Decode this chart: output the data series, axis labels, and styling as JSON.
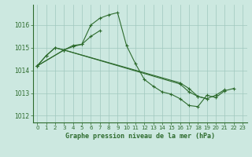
{
  "background_color": "#cce8e0",
  "grid_color": "#a0c8be",
  "line_color": "#2d6b2d",
  "title": "Graphe pression niveau de la mer (hPa)",
  "xlim": [
    -0.5,
    23.5
  ],
  "ylim": [
    1011.7,
    1016.9
  ],
  "yticks": [
    1012,
    1013,
    1014,
    1015,
    1016
  ],
  "xticks": [
    0,
    1,
    2,
    3,
    4,
    5,
    6,
    7,
    8,
    9,
    10,
    11,
    12,
    13,
    14,
    15,
    16,
    17,
    18,
    19,
    20,
    21,
    22,
    23
  ],
  "line1_x": [
    0,
    1,
    2,
    3,
    4,
    5,
    6,
    7,
    8,
    9,
    10,
    11,
    12,
    13,
    14,
    15,
    16,
    17,
    18,
    19,
    20,
    21,
    22
  ],
  "line1_y": [
    1014.2,
    1014.65,
    1015.0,
    1014.9,
    1015.1,
    1015.15,
    1016.0,
    1016.3,
    1016.45,
    1016.55,
    1015.1,
    1014.3,
    1013.6,
    1013.3,
    1013.05,
    1012.95,
    1012.75,
    1012.45,
    1012.4,
    1012.9,
    1012.8,
    1013.1,
    1013.2
  ],
  "line2_x": [
    0,
    1,
    2,
    3,
    4,
    5,
    6,
    7
  ],
  "line2_y": [
    1014.2,
    1014.65,
    1015.0,
    1014.9,
    1015.05,
    1015.15,
    1015.5,
    1015.75
  ],
  "line3_x": [
    0,
    3,
    16,
    17,
    18,
    19
  ],
  "line3_y": [
    1014.2,
    1014.9,
    1013.4,
    1013.05,
    1012.85,
    1012.75
  ],
  "line4_x": [
    0,
    3,
    16,
    17,
    18,
    19,
    20,
    21
  ],
  "line4_y": [
    1014.2,
    1014.9,
    1013.45,
    1013.2,
    1012.85,
    1012.75,
    1012.9,
    1013.15
  ]
}
